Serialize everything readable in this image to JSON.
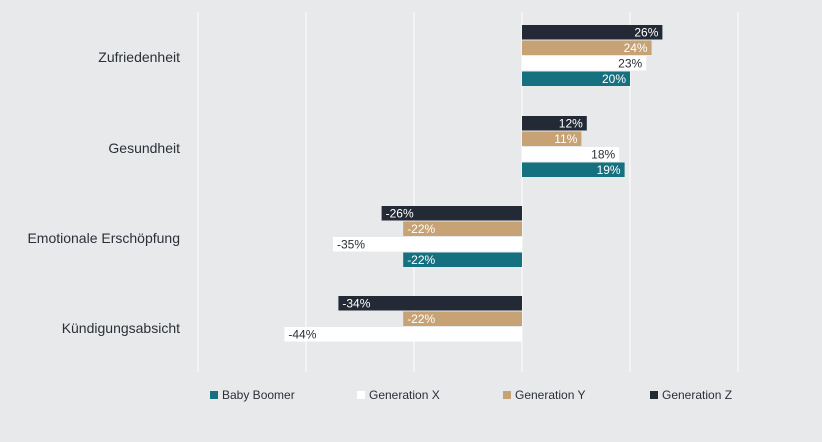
{
  "chart_data": {
    "type": "bar",
    "orientation": "horizontal",
    "categories": [
      "Zufriedenheit",
      "Gesundheit",
      "Emotionale Erschöpfung",
      "Kündigungsabsicht"
    ],
    "xlim": [
      -60,
      40
    ],
    "grid": true,
    "legend_position": "bottom",
    "series": [
      {
        "name": "Baby Boomer",
        "color": "#15707f",
        "values": [
          20,
          19,
          -22,
          null
        ]
      },
      {
        "name": "Generation X",
        "color": "#ffffff",
        "values": [
          23,
          18,
          -35,
          -44
        ]
      },
      {
        "name": "Generation Y",
        "color": "#c6a274",
        "values": [
          24,
          11,
          -22,
          -22
        ]
      },
      {
        "name": "Generation Z",
        "color": "#232a36",
        "values": [
          26,
          12,
          -26,
          -34
        ]
      }
    ],
    "bar_labels": [
      [
        "20%",
        "19%",
        "-22%",
        ""
      ],
      [
        "23%",
        "18%",
        "-35%",
        "-44%"
      ],
      [
        "24%",
        "11%",
        "-22%",
        "-22%"
      ],
      [
        "26%",
        "12%",
        "-26%",
        "-34%"
      ]
    ]
  }
}
